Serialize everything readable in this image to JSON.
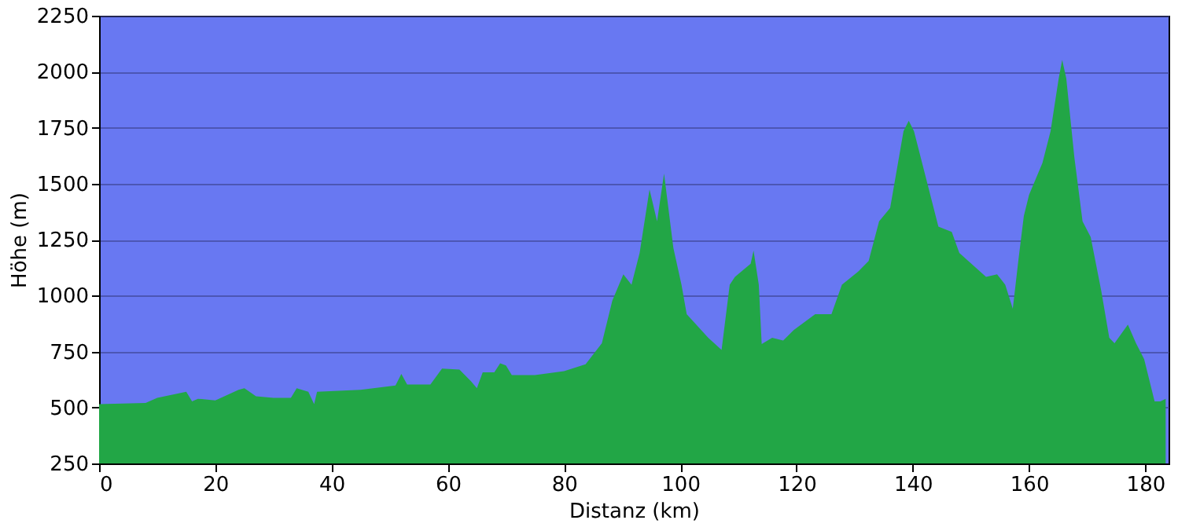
{
  "chart_data": {
    "type": "area",
    "xlabel": "Distanz (km)",
    "ylabel": "Höhe (m)",
    "xlim": [
      0,
      184
    ],
    "xticks": [
      0,
      20,
      40,
      60,
      80,
      100,
      120,
      140,
      160,
      180
    ],
    "ylim": [
      250,
      2250
    ],
    "yticks": [
      250,
      500,
      750,
      1000,
      1250,
      1500,
      1750,
      2000,
      2250
    ],
    "grid": "y",
    "marker": "none",
    "series": [
      {
        "color": "#22a646",
        "x": [
          0,
          8,
          10,
          15,
          16,
          17,
          20,
          22,
          24,
          25,
          27,
          30,
          33,
          34,
          36,
          37,
          37.5,
          45,
          51,
          52,
          53,
          57,
          59,
          62,
          64,
          65,
          66,
          68,
          69,
          70,
          71,
          75,
          80,
          83.7,
          86.5,
          88.3,
          90.2,
          91.6,
          93,
          94.7,
          96,
          97.2,
          98.8,
          100.2,
          101.1,
          104.8,
          107.1,
          108.5,
          109.4,
          112.1,
          112.6,
          113.5,
          114,
          115.8,
          117.7,
          119.5,
          123.2,
          126,
          127.8,
          130.6,
          132.4,
          134.2,
          136.1,
          138.4,
          139.3,
          140.2,
          144.4,
          146.7,
          148,
          152.6,
          154.5,
          155.9,
          157.2,
          158.2,
          159.1,
          160,
          162.3,
          163.7,
          165.1,
          165.7,
          166.4,
          167.8,
          169.2,
          170.6,
          172.4,
          173.8,
          174.7,
          177,
          178.4,
          179.8,
          181.6,
          182.6,
          183.5
        ],
        "values": [
          515,
          520,
          543,
          570,
          527,
          539,
          532,
          555,
          579,
          586,
          550,
          543,
          543,
          586,
          570,
          515,
          570,
          579,
          598,
          650,
          603,
          603,
          674,
          669,
          617,
          586,
          657,
          657,
          697,
          688,
          645,
          645,
          662,
          693,
          787,
          977,
          1095,
          1048,
          1190,
          1474,
          1332,
          1545,
          1213,
          1048,
          917,
          811,
          757,
          1048,
          1083,
          1142,
          1201,
          1048,
          783,
          811,
          799,
          846,
          917,
          917,
          1048,
          1107,
          1154,
          1332,
          1391,
          1734,
          1781,
          1734,
          1308,
          1284,
          1190,
          1083,
          1095,
          1048,
          941,
          1166,
          1355,
          1450,
          1592,
          1734,
          1970,
          2053,
          1970,
          1616,
          1332,
          1261,
          1024,
          811,
          787,
          870,
          787,
          716,
          527,
          527,
          539
        ]
      }
    ]
  }
}
